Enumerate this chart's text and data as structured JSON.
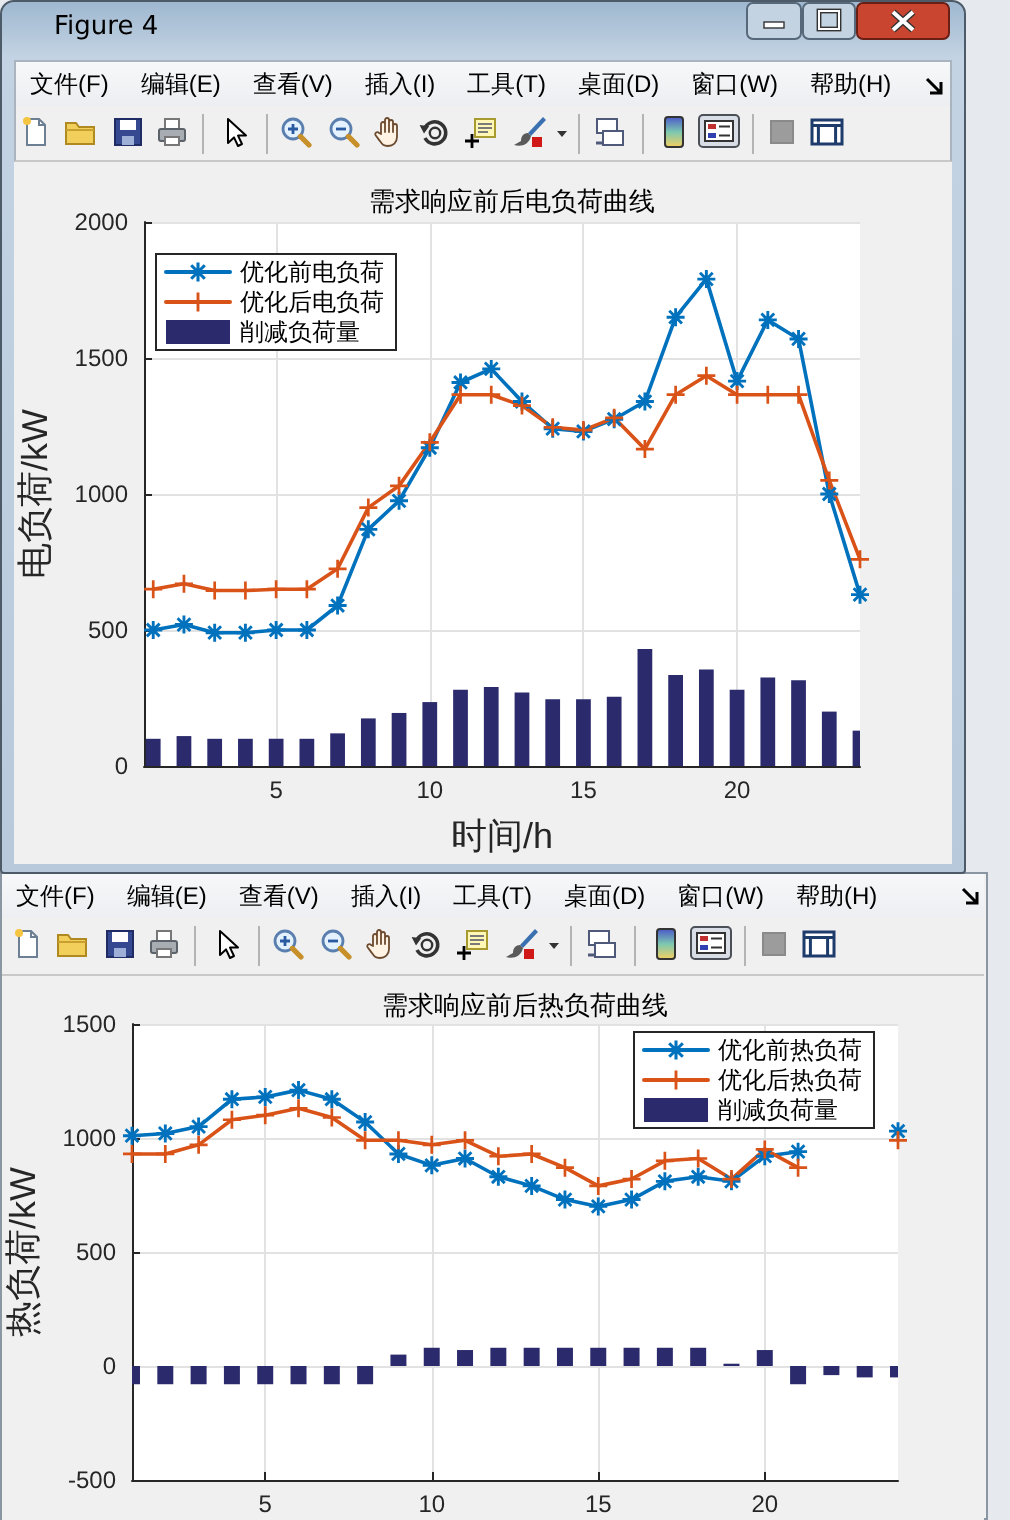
{
  "chart_data": [
    {
      "type": "line",
      "title": "需求响应前后电负荷曲线",
      "xlabel": "时间/h",
      "ylabel": "电负荷/kW",
      "annotations": [
        "Figure 4",
        "文件(F)",
        "编辑(E)",
        "查看(V)",
        "插入(I)",
        "工具(T)",
        "桌面(D)",
        "窗口(W)",
        "帮助(H)"
      ],
      "x": [
        1,
        2,
        3,
        4,
        5,
        6,
        7,
        8,
        9,
        10,
        11,
        12,
        13,
        14,
        15,
        16,
        17,
        18,
        19,
        20,
        21,
        22,
        23,
        24
      ],
      "series": [
        {
          "name": "优化前电负荷",
          "color": "#0072bd",
          "marker": "star",
          "values": [
            500,
            520,
            490,
            490,
            500,
            500,
            590,
            870,
            975,
            1170,
            1410,
            1460,
            1340,
            1240,
            1230,
            1275,
            1340,
            1650,
            1790,
            1415,
            1640,
            1570,
            1000,
            630
          ]
        },
        {
          "name": "优化后电负荷",
          "color": "#d95319",
          "marker": "cross",
          "values": [
            650,
            670,
            645,
            645,
            650,
            650,
            725,
            950,
            1030,
            1190,
            1365,
            1365,
            1325,
            1245,
            1235,
            1280,
            1165,
            1365,
            1435,
            1365,
            1365,
            1365,
            1050,
            760
          ]
        },
        {
          "name": "削减负荷量",
          "type": "bar",
          "color": "#2b2a6c",
          "values": [
            100,
            110,
            100,
            100,
            100,
            100,
            120,
            175,
            195,
            235,
            280,
            290,
            270,
            245,
            245,
            255,
            430,
            335,
            355,
            280,
            325,
            315,
            200,
            130
          ]
        }
      ],
      "xlim": [
        0.7,
        24
      ],
      "xticks": [
        5,
        10,
        15,
        20
      ],
      "ylim": [
        0,
        2000
      ],
      "yticks": [
        0,
        500,
        1000,
        1500,
        2000
      ],
      "grid": true,
      "legend": "top left",
      "line_style": "solid"
    },
    {
      "type": "line",
      "title": "需求响应前后热负荷曲线",
      "ylabel": "热负荷/kW",
      "annotations": [
        "文件(F)",
        "编辑(E)",
        "查看(V)",
        "插入(I)",
        "工具(T)",
        "桌面(D)",
        "窗口(W)",
        "帮助(H)"
      ],
      "x": [
        1,
        2,
        3,
        4,
        5,
        6,
        7,
        8,
        9,
        10,
        11,
        12,
        13,
        14,
        15,
        16,
        17,
        18,
        19,
        20,
        21,
        22,
        23,
        24
      ],
      "series": [
        {
          "name": "优化前热负荷",
          "color": "#0072bd",
          "marker": "star",
          "values": [
            1010,
            1020,
            1050,
            1170,
            1180,
            1210,
            1170,
            1070,
            930,
            880,
            910,
            830,
            790,
            730,
            700,
            730,
            810,
            830,
            810,
            920,
            940,
            null,
            null,
            1030
          ]
        },
        {
          "name": "优化后热负荷",
          "color": "#d95319",
          "marker": "cross",
          "values": [
            930,
            930,
            970,
            1080,
            1100,
            1130,
            1090,
            990,
            990,
            970,
            990,
            920,
            930,
            870,
            790,
            820,
            900,
            910,
            820,
            950,
            870,
            null,
            null,
            990
          ]
        },
        {
          "name": "削减负荷量",
          "type": "bar",
          "color": "#2b2a6c",
          "values": [
            -80,
            -80,
            -80,
            -80,
            -80,
            -80,
            -80,
            -80,
            50,
            80,
            70,
            80,
            80,
            80,
            80,
            80,
            80,
            80,
            10,
            70,
            -80,
            -40,
            -50,
            -50
          ]
        }
      ],
      "xlim": [
        1,
        24
      ],
      "xticks": [
        5,
        10,
        15,
        20
      ],
      "ylim": [
        -500,
        1500
      ],
      "yticks": [
        -500,
        0,
        500,
        1000,
        1500
      ],
      "grid": true,
      "legend": "top right",
      "line_style": "solid"
    }
  ]
}
